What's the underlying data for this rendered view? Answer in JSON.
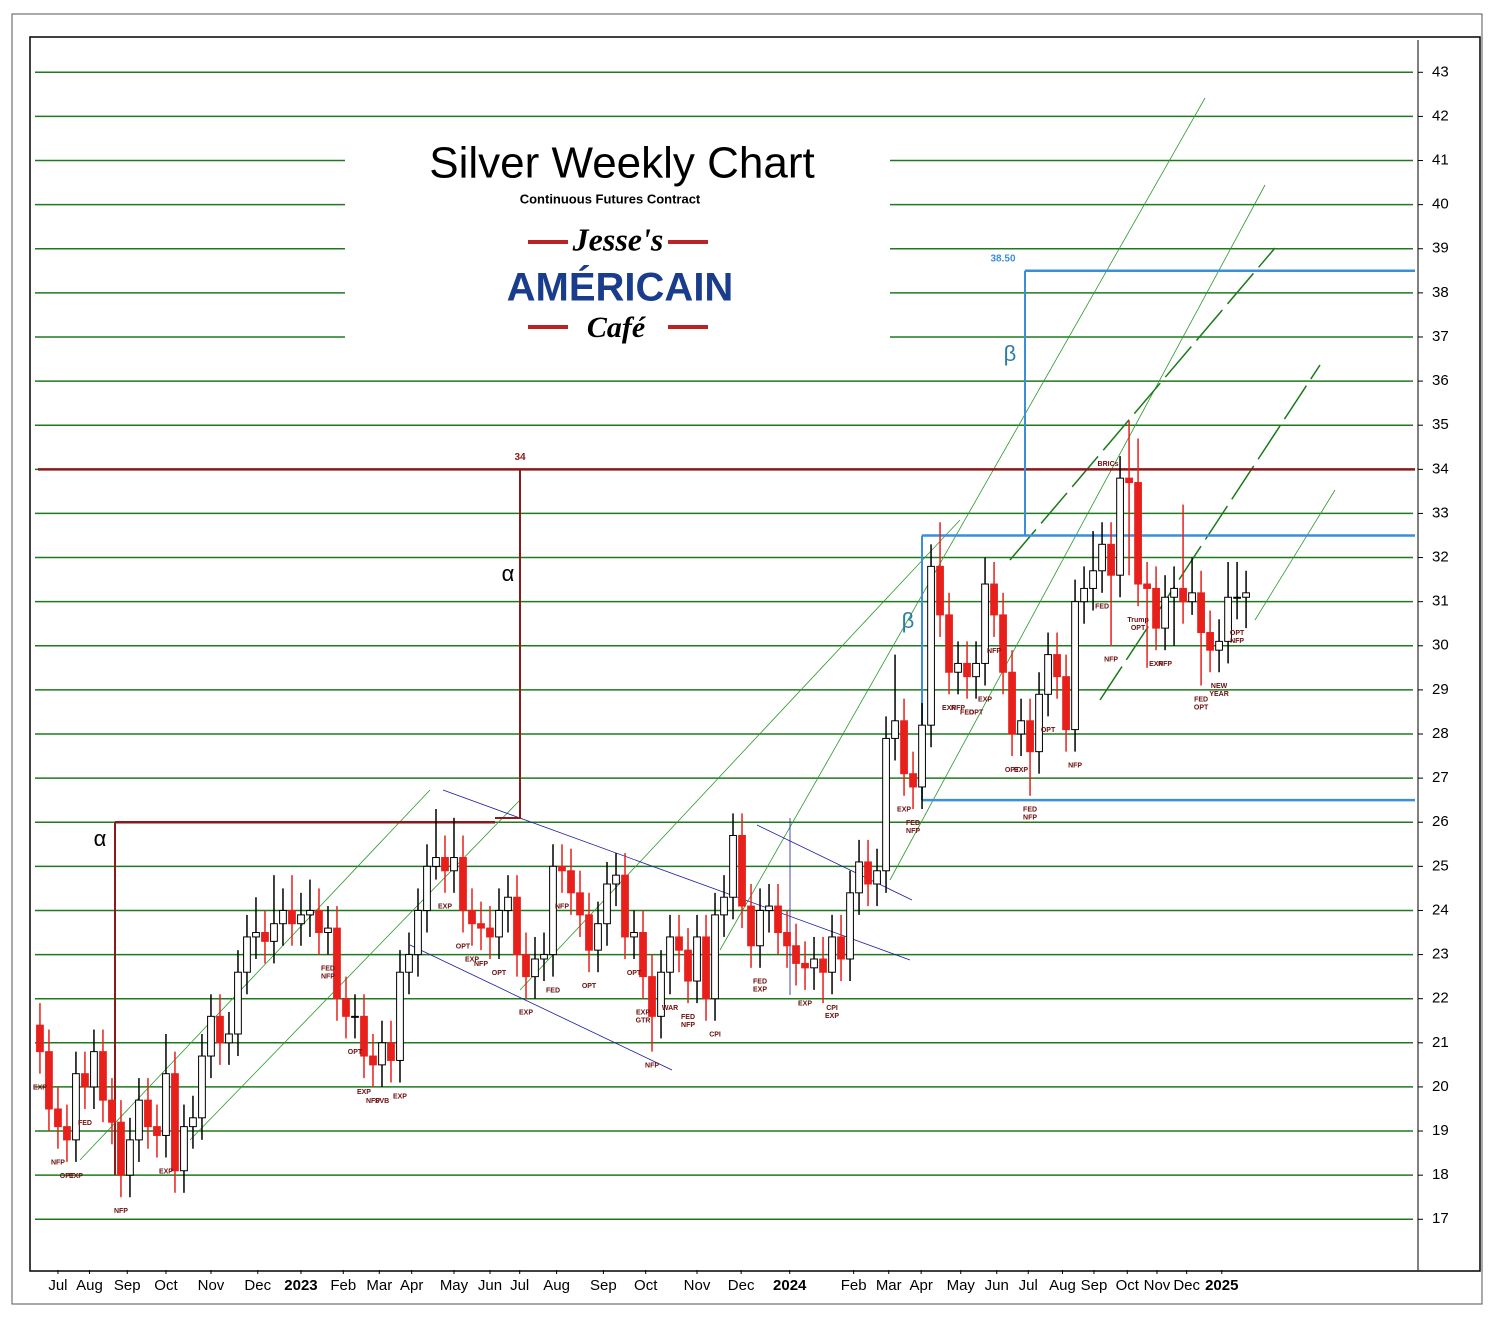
{
  "chart_data": {
    "type": "candlestick",
    "title": "Silver Weekly Chart",
    "subtitle": "Continuous Futures Contract",
    "logo": {
      "top": "Jesse's",
      "middle": "AMÉRICAIN",
      "bottom": "Café"
    },
    "up_color": "#ffffff",
    "down_color": "#e8201c",
    "grid_color": "#1f7a1f",
    "grid": true,
    "xlim": [
      -0.55,
      153.1
    ],
    "ylim": [
      15.85,
      43.8
    ],
    "yticks": [
      17,
      18,
      19,
      20,
      21,
      22,
      23,
      24,
      25,
      26,
      27,
      28,
      29,
      30,
      31,
      32,
      33,
      34,
      35,
      36,
      37,
      38,
      39,
      40,
      41,
      42,
      43
    ],
    "xticks": [
      {
        "value": 2,
        "label": "Jul"
      },
      {
        "value": 5.5,
        "label": "Aug"
      },
      {
        "value": 9.7,
        "label": "Sep"
      },
      {
        "value": 14,
        "label": "Oct"
      },
      {
        "value": 19,
        "label": "Nov"
      },
      {
        "value": 24.2,
        "label": "Dec"
      },
      {
        "value": 29,
        "label": "2023"
      },
      {
        "value": 33.7,
        "label": "Feb"
      },
      {
        "value": 37.7,
        "label": "Mar"
      },
      {
        "value": 41.3,
        "label": "Apr"
      },
      {
        "value": 46,
        "label": "May"
      },
      {
        "value": 50,
        "label": "Jun"
      },
      {
        "value": 53.3,
        "label": "Jul"
      },
      {
        "value": 57.4,
        "label": "Aug"
      },
      {
        "value": 62.6,
        "label": "Sep"
      },
      {
        "value": 67.3,
        "label": "Oct"
      },
      {
        "value": 73,
        "label": "Nov"
      },
      {
        "value": 77.9,
        "label": "Dec"
      },
      {
        "value": 83.3,
        "label": "2024"
      },
      {
        "value": 90.4,
        "label": "Feb"
      },
      {
        "value": 94.3,
        "label": "Mar"
      },
      {
        "value": 97.9,
        "label": "Apr"
      },
      {
        "value": 102.3,
        "label": "May"
      },
      {
        "value": 106.3,
        "label": "Jun"
      },
      {
        "value": 109.8,
        "label": "Jul"
      },
      {
        "value": 113.6,
        "label": "Aug"
      },
      {
        "value": 117.1,
        "label": "Sep"
      },
      {
        "value": 120.8,
        "label": "Oct"
      },
      {
        "value": 124.1,
        "label": "Nov"
      },
      {
        "value": 127.4,
        "label": "Dec"
      },
      {
        "value": 131.3,
        "label": "2025"
      }
    ],
    "open": [
      21.4,
      20.8,
      19.5,
      19.1,
      18.8,
      20.3,
      20.0,
      20.8,
      19.7,
      19.2,
      18.0,
      18.8,
      19.7,
      19.1,
      18.9,
      20.3,
      18.1,
      19.1,
      19.3,
      20.7,
      21.6,
      21.0,
      21.2,
      22.6,
      23.4,
      23.5,
      23.3,
      23.7,
      24.0,
      23.7,
      23.9,
      24.0,
      23.5,
      23.6,
      22.0,
      21.6,
      21.6,
      20.7,
      20.5,
      21.0,
      20.6,
      22.6,
      23.0,
      24.0,
      25.0,
      25.2,
      24.9,
      25.2,
      24.0,
      23.7,
      23.6,
      23.4,
      24.0,
      24.3,
      23.0,
      22.5,
      22.9,
      23.0,
      25.0,
      24.9,
      24.4,
      23.9,
      23.1,
      23.7,
      24.6,
      24.8,
      23.4,
      23.5,
      22.5,
      21.6,
      22.6,
      23.4,
      23.1,
      22.4,
      23.4,
      22.0,
      23.9,
      24.3,
      25.7,
      24.1,
      23.2,
      24.0,
      24.1,
      23.5,
      23.2,
      22.8,
      22.7,
      22.9,
      22.6,
      23.4,
      22.9,
      24.4,
      25.1,
      24.6,
      24.9,
      27.9,
      28.3,
      27.1,
      26.8,
      28.2,
      31.8,
      30.7,
      29.4,
      29.6,
      29.3,
      29.6,
      31.4,
      30.7,
      29.4,
      28.0,
      28.3,
      27.6,
      28.9,
      29.8,
      29.3,
      28.1,
      31.0,
      31.3,
      31.7,
      32.3,
      31.6,
      33.8,
      33.7,
      31.4,
      31.3,
      30.4,
      31.1,
      31.3,
      31.0,
      31.2,
      30.3,
      29.9,
      30.1,
      31.1,
      31.1
    ],
    "high": [
      21.9,
      21.3,
      20.0,
      19.6,
      20.8,
      20.8,
      21.3,
      21.3,
      20.2,
      19.7,
      19.3,
      20.2,
      20.2,
      19.6,
      21.2,
      20.8,
      19.6,
      19.8,
      21.2,
      22.1,
      22.1,
      21.7,
      23.1,
      23.9,
      24.3,
      24.0,
      24.8,
      24.5,
      24.8,
      24.4,
      24.7,
      24.5,
      24.1,
      24.1,
      22.5,
      22.1,
      22.1,
      21.2,
      21.5,
      21.5,
      23.1,
      23.5,
      24.5,
      25.5,
      26.3,
      25.7,
      26.1,
      25.7,
      24.5,
      24.2,
      24.1,
      24.5,
      24.8,
      24.8,
      23.5,
      23.4,
      23.5,
      25.5,
      25.5,
      25.4,
      24.9,
      24.4,
      24.2,
      25.1,
      25.3,
      25.3,
      24.0,
      24.0,
      23.0,
      23.1,
      23.9,
      23.9,
      23.6,
      23.9,
      23.9,
      24.4,
      24.8,
      26.2,
      26.2,
      24.6,
      24.5,
      24.6,
      24.6,
      24.0,
      23.7,
      23.3,
      23.4,
      23.4,
      23.9,
      23.9,
      24.9,
      25.6,
      25.6,
      25.4,
      28.4,
      29.8,
      28.8,
      27.6,
      28.7,
      32.3,
      32.8,
      31.2,
      30.1,
      30.1,
      30.1,
      32.0,
      31.9,
      31.2,
      29.9,
      28.8,
      28.8,
      29.4,
      30.3,
      30.3,
      29.8,
      31.5,
      31.8,
      32.6,
      32.8,
      32.8,
      34.3,
      35.1,
      34.7,
      31.9,
      31.8,
      31.6,
      31.8,
      33.2,
      32.0,
      31.7,
      30.8,
      30.6,
      31.9,
      31.9,
      31.7
    ],
    "low": [
      20.3,
      19.0,
      18.6,
      18.3,
      18.3,
      19.5,
      19.5,
      19.2,
      18.7,
      17.5,
      17.5,
      18.3,
      18.6,
      18.4,
      18.4,
      17.6,
      17.6,
      18.6,
      18.8,
      20.2,
      20.5,
      20.5,
      20.7,
      22.1,
      22.9,
      22.8,
      22.8,
      23.2,
      23.2,
      23.2,
      23.4,
      23.0,
      23.0,
      21.5,
      21.1,
      21.1,
      20.2,
      20.0,
      20.0,
      20.1,
      20.1,
      22.1,
      22.5,
      23.5,
      24.7,
      24.4,
      24.4,
      23.5,
      23.2,
      23.1,
      22.9,
      22.9,
      23.5,
      22.5,
      22.0,
      22.0,
      22.4,
      22.5,
      24.4,
      23.9,
      23.4,
      22.6,
      22.6,
      23.2,
      24.1,
      22.9,
      22.9,
      22.0,
      20.8,
      21.1,
      22.1,
      22.6,
      21.9,
      21.9,
      21.5,
      21.5,
      23.4,
      23.8,
      23.6,
      22.7,
      22.7,
      23.5,
      23.0,
      22.7,
      22.3,
      22.2,
      22.2,
      21.9,
      22.1,
      22.4,
      22.4,
      23.9,
      24.1,
      24.1,
      24.4,
      27.4,
      26.6,
      26.3,
      26.3,
      27.7,
      30.2,
      28.9,
      28.9,
      28.8,
      28.8,
      29.1,
      30.2,
      28.9,
      27.5,
      27.5,
      26.6,
      27.1,
      28.4,
      28.8,
      27.6,
      27.6,
      30.5,
      30.8,
      31.2,
      30.0,
      31.1,
      31.6,
      30.9,
      29.5,
      29.9,
      29.9,
      30.0,
      30.5,
      30.7,
      29.1,
      29.4,
      29.4,
      29.6,
      30.6,
      30.4
    ],
    "close": [
      20.8,
      19.5,
      19.1,
      18.8,
      20.3,
      20.0,
      20.8,
      19.7,
      19.2,
      18.0,
      18.8,
      19.7,
      19.1,
      18.9,
      20.3,
      18.1,
      19.1,
      19.3,
      20.7,
      21.6,
      21.0,
      21.2,
      22.6,
      23.4,
      23.5,
      23.3,
      23.7,
      24.0,
      23.7,
      23.9,
      24.0,
      23.5,
      23.6,
      22.0,
      21.6,
      21.6,
      20.7,
      20.5,
      21.0,
      20.6,
      22.6,
      23.0,
      24.0,
      25.0,
      25.2,
      24.9,
      25.2,
      24.0,
      23.7,
      23.6,
      23.4,
      24.0,
      24.3,
      23.0,
      22.5,
      22.9,
      23.0,
      25.0,
      24.9,
      24.4,
      23.9,
      23.1,
      23.7,
      24.6,
      24.8,
      23.4,
      23.5,
      22.5,
      21.6,
      22.6,
      23.4,
      23.1,
      22.4,
      23.4,
      22.0,
      23.9,
      24.3,
      25.7,
      24.1,
      23.2,
      24.0,
      24.1,
      23.5,
      23.2,
      22.8,
      22.7,
      22.9,
      22.6,
      23.4,
      22.9,
      24.4,
      25.1,
      24.6,
      24.9,
      27.9,
      28.3,
      27.1,
      26.8,
      28.2,
      31.8,
      30.7,
      29.4,
      29.6,
      29.3,
      29.6,
      31.4,
      30.7,
      29.4,
      28.0,
      28.3,
      27.6,
      28.9,
      29.8,
      29.3,
      28.1,
      31.0,
      31.3,
      31.7,
      32.3,
      31.6,
      33.8,
      33.7,
      31.4,
      31.3,
      30.4,
      31.1,
      31.3,
      31.0,
      31.2,
      30.3,
      29.9,
      30.1,
      31.1,
      31.1,
      31.2
    ],
    "levels": [
      {
        "value": 34,
        "label": "34",
        "color": "#8b1a1a"
      },
      {
        "value": 38.5,
        "label": "38.50",
        "color": "#3a8fd8"
      },
      {
        "value": 32.5,
        "color": "#3a8fd8"
      },
      {
        "value": 26.5,
        "color": "#3a8fd8"
      },
      {
        "value": 26,
        "color": "#8b1a1a"
      }
    ],
    "annotations": [
      "α",
      "α",
      "β",
      "β"
    ],
    "events": [
      {
        "index": 0,
        "text": "EXP"
      },
      {
        "index": 2,
        "text": "NFP"
      },
      {
        "index": 3,
        "text": "OPT"
      },
      {
        "index": 4,
        "text": "EXP"
      },
      {
        "index": 5,
        "text": "FED"
      },
      {
        "index": 9,
        "text": "NFP"
      },
      {
        "index": 14,
        "text": "EXP"
      },
      {
        "index": 32,
        "text": "FED"
      },
      {
        "index": 32,
        "text": "NFP"
      },
      {
        "index": 35,
        "text": "OPT"
      },
      {
        "index": 36,
        "text": "EXP"
      },
      {
        "index": 37,
        "text": "NFP"
      },
      {
        "index": 38,
        "text": "SVB"
      },
      {
        "index": 40,
        "text": "EXP"
      },
      {
        "index": 45,
        "text": "EXP"
      },
      {
        "index": 47,
        "text": "OPT"
      },
      {
        "index": 48,
        "text": "EXP"
      },
      {
        "index": 49,
        "text": "NFP"
      },
      {
        "index": 51,
        "text": "OPT"
      },
      {
        "index": 54,
        "text": "EXP"
      },
      {
        "index": 57,
        "text": "FED"
      },
      {
        "index": 58,
        "text": "NFP"
      },
      {
        "index": 61,
        "text": "OPT"
      },
      {
        "index": 66,
        "text": "OPT"
      },
      {
        "index": 67,
        "text": "EXP"
      },
      {
        "index": 67,
        "text": "GTR"
      },
      {
        "index": 68,
        "text": "NFP"
      },
      {
        "index": 70,
        "text": "WAR"
      },
      {
        "index": 72,
        "text": "FED"
      },
      {
        "index": 72,
        "text": "NFP"
      },
      {
        "index": 75,
        "text": "CPI"
      },
      {
        "index": 80,
        "text": "FED"
      },
      {
        "index": 80,
        "text": "EXP"
      },
      {
        "index": 85,
        "text": "EXP"
      },
      {
        "index": 88,
        "text": "CPI"
      },
      {
        "index": 88,
        "text": "EXP"
      },
      {
        "index": 96,
        "text": "EXP"
      },
      {
        "index": 97,
        "text": "FED"
      },
      {
        "index": 97,
        "text": "NFP"
      },
      {
        "index": 101,
        "text": "EXP"
      },
      {
        "index": 102,
        "text": "NFP"
      },
      {
        "index": 103,
        "text": "FED"
      },
      {
        "index": 104,
        "text": "OPT"
      },
      {
        "index": 105,
        "text": "EXP"
      },
      {
        "index": 106,
        "text": "NFP"
      },
      {
        "index": 108,
        "text": "OPT"
      },
      {
        "index": 109,
        "text": "EXP"
      },
      {
        "index": 110,
        "text": "FED"
      },
      {
        "index": 110,
        "text": "NFP"
      },
      {
        "index": 112,
        "text": "OPT"
      },
      {
        "index": 115,
        "text": "NFP"
      },
      {
        "index": 118,
        "text": "FED"
      },
      {
        "index": 119,
        "text": "NFP"
      },
      {
        "index": 122,
        "text": "Trump"
      },
      {
        "index": 122,
        "text": "OPT"
      },
      {
        "index": 124,
        "text": "EXP"
      },
      {
        "index": 125,
        "text": "NFP"
      },
      {
        "index": 129,
        "text": "FED"
      },
      {
        "index": 129,
        "text": "OPT"
      },
      {
        "index": 131,
        "text": "NEW"
      },
      {
        "index": 131,
        "text": "YEAR"
      },
      {
        "index": 133,
        "text": "OPT"
      },
      {
        "index": 133,
        "text": "NFP"
      }
    ],
    "top_event": {
      "index": 120,
      "text": "BRICs"
    }
  }
}
